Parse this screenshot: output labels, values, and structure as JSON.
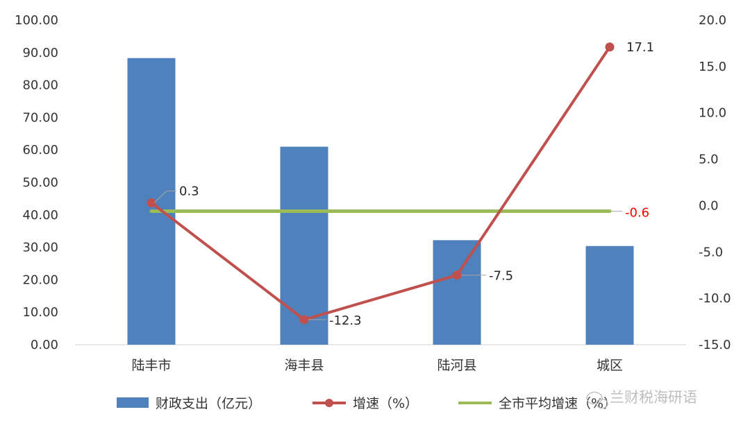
{
  "chart_data": {
    "type": "bar+line",
    "categories": [
      "陆丰市",
      "海丰县",
      "陆河县",
      "城区"
    ],
    "y_left": {
      "min": 0,
      "max": 100,
      "step": 10,
      "decimals": 2
    },
    "y_right": {
      "min": -15,
      "max": 20,
      "step": 5,
      "decimals": 1
    },
    "series": [
      {
        "name": "财政支出（亿元）",
        "type": "bar",
        "axis": "left",
        "color": "#4f81bd",
        "values": [
          88.3,
          61.0,
          32.2,
          30.4
        ]
      },
      {
        "name": "增速（%）",
        "type": "line",
        "axis": "right",
        "color": "#c0504d",
        "values": [
          0.3,
          -12.3,
          -7.5,
          17.1
        ],
        "labels": [
          "0.3",
          "-12.3",
          "-7.5",
          "17.1"
        ]
      },
      {
        "name": "全市平均增速（%）",
        "type": "line",
        "axis": "right",
        "color": "#9bbb59",
        "values": [
          -0.6,
          -0.6,
          -0.6,
          -0.6
        ],
        "label": "-0.6",
        "label_color": "#ff0000"
      }
    ],
    "grid": false,
    "legend": "bottom"
  },
  "watermark": {
    "text": "兰财税海研语"
  }
}
